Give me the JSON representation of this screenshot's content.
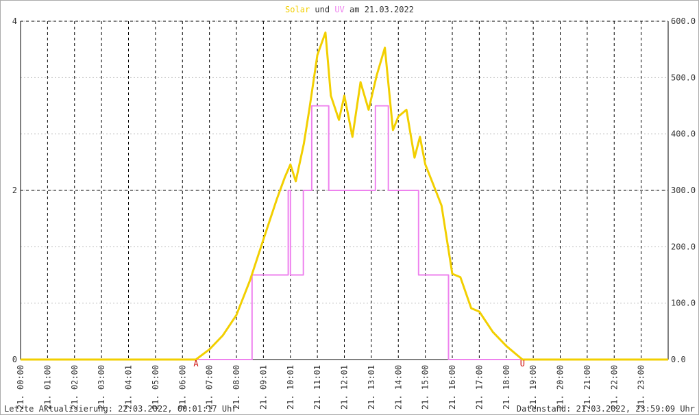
{
  "chart_data": {
    "type": "line",
    "title_parts": [
      "und",
      "am 21.03.2022"
    ],
    "footer_left": "Letzte Aktualisierung: 22.03.2022, 00:01:17 Uhr",
    "footer_right": "Datenstand: 21.03.2022, 23:59:09 Uhr",
    "xlim": [
      0,
      24
    ],
    "xticks": [
      {
        "value": 0,
        "label": "21. 00:00"
      },
      {
        "value": 1,
        "label": "21. 01:00"
      },
      {
        "value": 2,
        "label": "21. 02:00"
      },
      {
        "value": 3,
        "label": "21. 03:00"
      },
      {
        "value": 4,
        "label": "21. 04:01"
      },
      {
        "value": 5,
        "label": "21. 05:00"
      },
      {
        "value": 6,
        "label": "21. 06:00"
      },
      {
        "value": 7,
        "label": "21. 07:00"
      },
      {
        "value": 8,
        "label": "21. 08:00"
      },
      {
        "value": 9,
        "label": "21. 09:01"
      },
      {
        "value": 10,
        "label": "21. 10:01"
      },
      {
        "value": 11,
        "label": "21. 11:01"
      },
      {
        "value": 12,
        "label": "21. 12:01"
      },
      {
        "value": 13,
        "label": "21. 13:01"
      },
      {
        "value": 14,
        "label": "21. 14:00"
      },
      {
        "value": 15,
        "label": "21. 15:00"
      },
      {
        "value": 16,
        "label": "21. 16:00"
      },
      {
        "value": 17,
        "label": "21. 17:00"
      },
      {
        "value": 18,
        "label": "21. 18:00"
      },
      {
        "value": 19,
        "label": "21. 19:00"
      },
      {
        "value": 20,
        "label": "21. 20:00"
      },
      {
        "value": 21,
        "label": "21. 21:00"
      },
      {
        "value": 22,
        "label": "21. 22:00"
      },
      {
        "value": 23,
        "label": "21. 23:00"
      }
    ],
    "ylim": [
      0,
      4
    ],
    "yticks": [
      0,
      2,
      4
    ],
    "y2lim": [
      0,
      600
    ],
    "y2ticks": [
      {
        "value": 0,
        "label": "0.0"
      },
      {
        "value": 100,
        "label": "100.0"
      },
      {
        "value": 200,
        "label": "200.0"
      },
      {
        "value": 300,
        "label": "300.0"
      },
      {
        "value": 400,
        "label": "400.0"
      },
      {
        "value": 500,
        "label": "500.0"
      },
      {
        "value": 600,
        "label": "600.0"
      }
    ],
    "grid": true,
    "annotations": [
      {
        "text": "A",
        "x": 6.5
      },
      {
        "text": "U",
        "x": 18.6
      }
    ],
    "series": [
      {
        "name": "Solar",
        "color": "#f2cf00",
        "axis": "y2",
        "x": [
          0,
          6.5,
          7.0,
          7.5,
          8.0,
          8.5,
          9.0,
          9.5,
          9.8,
          10.0,
          10.2,
          10.5,
          10.7,
          11.0,
          11.3,
          11.5,
          11.8,
          12.0,
          12.3,
          12.6,
          12.9,
          13.2,
          13.5,
          13.8,
          14.0,
          14.3,
          14.6,
          14.8,
          15.0,
          15.3,
          15.6,
          16.0,
          16.3,
          16.7,
          17.0,
          17.5,
          18.0,
          18.5,
          18.6,
          24
        ],
        "values": [
          0,
          0,
          18,
          43,
          79,
          140,
          213,
          285,
          324,
          346,
          316,
          383,
          443,
          540,
          580,
          468,
          425,
          468,
          395,
          492,
          443,
          504,
          553,
          407,
          431,
          443,
          358,
          395,
          346,
          310,
          273,
          152,
          146,
          91,
          85,
          49,
          24,
          4,
          0,
          0
        ]
      },
      {
        "name": "UV",
        "color": "#ee82ee",
        "axis": "y",
        "x": [
          0,
          8.58,
          8.58,
          9.92,
          9.92,
          10.0,
          10.0,
          10.48,
          10.48,
          10.79,
          10.79,
          11.42,
          11.42,
          13.15,
          13.15,
          13.63,
          13.63,
          14.75,
          14.75,
          15.86,
          15.86,
          24
        ],
        "values": [
          0,
          0,
          1,
          1,
          2,
          2,
          1,
          1,
          2,
          2,
          3,
          3,
          2,
          2,
          3,
          3,
          2,
          2,
          1,
          1,
          0,
          0
        ]
      }
    ]
  }
}
